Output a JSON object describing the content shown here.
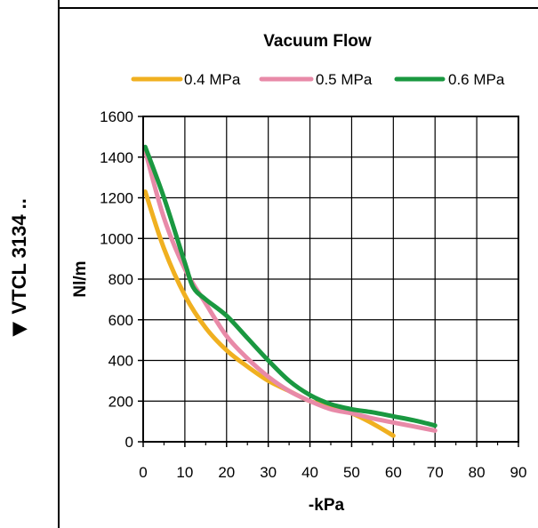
{
  "side_label": "VTCL 3134 ..",
  "side_marker_icon": "triangle-down-icon",
  "chart_data": {
    "type": "line",
    "title": "Vacuum Flow",
    "xlabel": "-kPa",
    "ylabel": "Nl/m",
    "xlim": [
      0,
      90
    ],
    "ylim": [
      0,
      1600
    ],
    "x_ticks": [
      0,
      10,
      20,
      30,
      40,
      50,
      60,
      70,
      80,
      90
    ],
    "y_ticks": [
      0,
      200,
      400,
      600,
      800,
      1000,
      1200,
      1400,
      1600
    ],
    "grid": true,
    "legend_position": "top",
    "series": [
      {
        "name": "0.4 MPa",
        "color": "#f0b020",
        "points": [
          [
            0.5,
            1230
          ],
          [
            5,
            950
          ],
          [
            10,
            720
          ],
          [
            15,
            560
          ],
          [
            20,
            450
          ],
          [
            25,
            370
          ],
          [
            30,
            300
          ],
          [
            35,
            250
          ],
          [
            40,
            200
          ],
          [
            45,
            170
          ],
          [
            50,
            140
          ],
          [
            55,
            90
          ],
          [
            60,
            30
          ]
        ]
      },
      {
        "name": "0.5 MPa",
        "color": "#e88aa8",
        "points": [
          [
            0.5,
            1430
          ],
          [
            5,
            1100
          ],
          [
            10,
            850
          ],
          [
            15,
            680
          ],
          [
            20,
            520
          ],
          [
            25,
            410
          ],
          [
            30,
            320
          ],
          [
            35,
            250
          ],
          [
            40,
            200
          ],
          [
            45,
            160
          ],
          [
            50,
            140
          ],
          [
            55,
            115
          ],
          [
            60,
            95
          ],
          [
            65,
            75
          ],
          [
            70,
            55
          ]
        ]
      },
      {
        "name": "0.6 MPa",
        "color": "#1a9840",
        "points": [
          [
            0.5,
            1450
          ],
          [
            5,
            1200
          ],
          [
            10,
            880
          ],
          [
            12,
            760
          ],
          [
            15,
            700
          ],
          [
            20,
            620
          ],
          [
            25,
            510
          ],
          [
            30,
            400
          ],
          [
            35,
            300
          ],
          [
            40,
            230
          ],
          [
            45,
            185
          ],
          [
            50,
            160
          ],
          [
            55,
            145
          ],
          [
            60,
            125
          ],
          [
            65,
            105
          ],
          [
            70,
            80
          ]
        ]
      }
    ]
  }
}
